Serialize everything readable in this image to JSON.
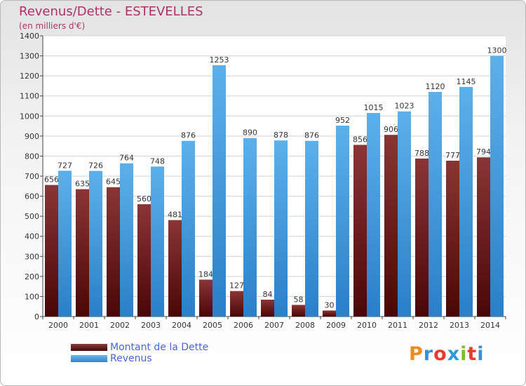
{
  "header": {
    "title": "Revenus/Dette - ESTEVELLES",
    "subtitle": "(en milliers d'€)"
  },
  "legend": {
    "debt_label": "Montant de la Dette",
    "revenue_label": "Revenus"
  },
  "logo": {
    "letters": [
      "P",
      "r",
      "o",
      "x",
      "i",
      "t",
      "i"
    ],
    "colors": [
      "#f08a1c",
      "#3a8fd8",
      "#e63b2e",
      "#2e9ad8",
      "#7cbf2a",
      "#e63b2e",
      "#3a8fd8"
    ]
  },
  "colors": {
    "debt": "#6a1a1a",
    "revenue": "#3d99dd",
    "title": "#b0306a",
    "legend_text": "#4a66d6"
  },
  "chart_data": {
    "type": "bar",
    "title": "Revenus/Dette - ESTEVELLES",
    "subtitle": "(en milliers d'€)",
    "categories": [
      "2000",
      "2001",
      "2002",
      "2003",
      "2004",
      "2005",
      "2006",
      "2007",
      "2008",
      "2009",
      "2010",
      "2011",
      "2012",
      "2013",
      "2014"
    ],
    "series": [
      {
        "name": "Montant de la Dette",
        "values": [
          656,
          635,
          645,
          560,
          481,
          184,
          127,
          84,
          58,
          30,
          856,
          906,
          788,
          777,
          794
        ]
      },
      {
        "name": "Revenus",
        "values": [
          727,
          726,
          764,
          748,
          876,
          1253,
          890,
          878,
          876,
          952,
          1015,
          1023,
          1120,
          1145,
          1300
        ]
      }
    ],
    "ylim": [
      0,
      1400
    ],
    "yticks": [
      0,
      100,
      200,
      300,
      400,
      500,
      600,
      700,
      800,
      900,
      1000,
      1100,
      1200,
      1300,
      1400
    ],
    "grid": true,
    "legend_position": "bottom-left"
  }
}
